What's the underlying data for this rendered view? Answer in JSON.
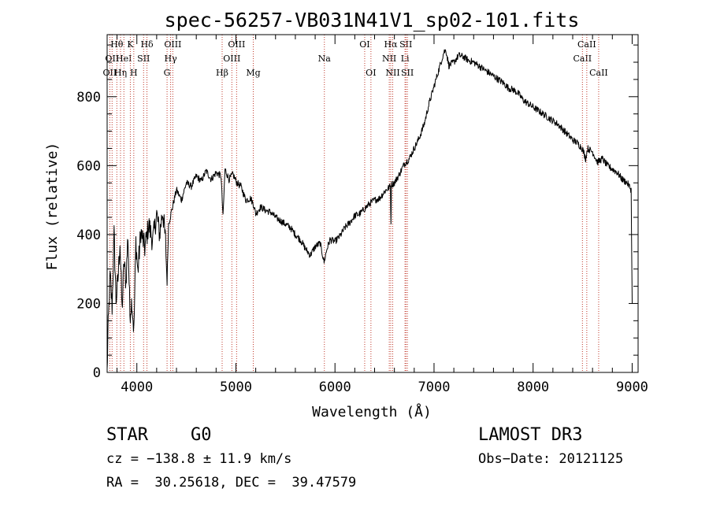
{
  "chart_data": {
    "type": "line",
    "title": "spec-56257-VB031N41V1_sp02-101.fits",
    "xlabel": "Wavelength (Å)",
    "ylabel": "Flux (relative)",
    "xlim": [
      3700,
      9060
    ],
    "ylim": [
      0,
      980
    ],
    "xticks_major": [
      4000,
      5000,
      6000,
      7000,
      8000,
      9000
    ],
    "yticks_major": [
      0,
      200,
      400,
      600,
      800
    ],
    "xtick_minor_step": 200,
    "ytick_minor_step": 50,
    "series": [
      {
        "name": "flux",
        "points": [
          [
            3700,
            0
          ],
          [
            3710,
            130
          ],
          [
            3730,
            280
          ],
          [
            3750,
            190
          ],
          [
            3770,
            400
          ],
          [
            3790,
            210
          ],
          [
            3810,
            270
          ],
          [
            3830,
            380
          ],
          [
            3850,
            180
          ],
          [
            3870,
            320
          ],
          [
            3890,
            260
          ],
          [
            3910,
            400
          ],
          [
            3930,
            170
          ],
          [
            3950,
            210
          ],
          [
            3970,
            120
          ],
          [
            3990,
            380
          ],
          [
            4010,
            290
          ],
          [
            4040,
            410
          ],
          [
            4080,
            360
          ],
          [
            4120,
            430
          ],
          [
            4160,
            380
          ],
          [
            4200,
            460
          ],
          [
            4230,
            400
          ],
          [
            4260,
            470
          ],
          [
            4290,
            380
          ],
          [
            4305,
            260
          ],
          [
            4320,
            430
          ],
          [
            4360,
            480
          ],
          [
            4400,
            530
          ],
          [
            4450,
            500
          ],
          [
            4500,
            550
          ],
          [
            4550,
            540
          ],
          [
            4600,
            570
          ],
          [
            4650,
            555
          ],
          [
            4700,
            585
          ],
          [
            4750,
            560
          ],
          [
            4800,
            580
          ],
          [
            4850,
            570
          ],
          [
            4870,
            450
          ],
          [
            4890,
            590
          ],
          [
            4930,
            560
          ],
          [
            4970,
            575
          ],
          [
            5010,
            550
          ],
          [
            5050,
            540
          ],
          [
            5100,
            500
          ],
          [
            5150,
            505
          ],
          [
            5180,
            485
          ],
          [
            5200,
            460
          ],
          [
            5250,
            480
          ],
          [
            5300,
            470
          ],
          [
            5350,
            465
          ],
          [
            5400,
            450
          ],
          [
            5450,
            440
          ],
          [
            5500,
            430
          ],
          [
            5550,
            420
          ],
          [
            5600,
            400
          ],
          [
            5650,
            385
          ],
          [
            5700,
            360
          ],
          [
            5750,
            340
          ],
          [
            5800,
            365
          ],
          [
            5850,
            375
          ],
          [
            5890,
            320
          ],
          [
            5920,
            360
          ],
          [
            5950,
            385
          ],
          [
            6000,
            380
          ],
          [
            6050,
            395
          ],
          [
            6100,
            420
          ],
          [
            6150,
            435
          ],
          [
            6200,
            455
          ],
          [
            6250,
            460
          ],
          [
            6300,
            475
          ],
          [
            6350,
            490
          ],
          [
            6400,
            500
          ],
          [
            6450,
            505
          ],
          [
            6500,
            525
          ],
          [
            6560,
            540
          ],
          [
            6565,
            430
          ],
          [
            6570,
            545
          ],
          [
            6600,
            550
          ],
          [
            6650,
            575
          ],
          [
            6700,
            605
          ],
          [
            6750,
            620
          ],
          [
            6800,
            650
          ],
          [
            6850,
            680
          ],
          [
            6900,
            720
          ],
          [
            6950,
            780
          ],
          [
            7000,
            830
          ],
          [
            7050,
            880
          ],
          [
            7100,
            930
          ],
          [
            7120,
            935
          ],
          [
            7150,
            890
          ],
          [
            7200,
            900
          ],
          [
            7250,
            920
          ],
          [
            7300,
            915
          ],
          [
            7350,
            905
          ],
          [
            7400,
            900
          ],
          [
            7450,
            890
          ],
          [
            7500,
            880
          ],
          [
            7550,
            870
          ],
          [
            7600,
            860
          ],
          [
            7650,
            850
          ],
          [
            7700,
            840
          ],
          [
            7750,
            825
          ],
          [
            7800,
            820
          ],
          [
            7850,
            810
          ],
          [
            7900,
            790
          ],
          [
            7950,
            780
          ],
          [
            8000,
            770
          ],
          [
            8050,
            760
          ],
          [
            8100,
            750
          ],
          [
            8150,
            740
          ],
          [
            8200,
            730
          ],
          [
            8250,
            720
          ],
          [
            8300,
            705
          ],
          [
            8350,
            690
          ],
          [
            8400,
            675
          ],
          [
            8450,
            665
          ],
          [
            8500,
            648
          ],
          [
            8530,
            620
          ],
          [
            8550,
            650
          ],
          [
            8600,
            640
          ],
          [
            8650,
            610
          ],
          [
            8700,
            620
          ],
          [
            8750,
            600
          ],
          [
            8800,
            590
          ],
          [
            8850,
            580
          ],
          [
            8900,
            560
          ],
          [
            8950,
            550
          ],
          [
            8990,
            530
          ],
          [
            9000,
            200
          ]
        ]
      }
    ],
    "lines": [
      {
        "wl": 3727,
        "label": "OII",
        "tier": 3
      },
      {
        "wl": 3750,
        "label": "OII",
        "tier": 2
      },
      {
        "wl": 3798,
        "label": "Hθ",
        "tier": 1
      },
      {
        "wl": 3835,
        "label": "Hη",
        "tier": 3
      },
      {
        "wl": 3869,
        "label": "HeI",
        "tier": 2
      },
      {
        "wl": 3934,
        "label": "K",
        "tier": 1
      },
      {
        "wl": 3969,
        "label": "H",
        "tier": 3
      },
      {
        "wl": 4068,
        "label": "SII",
        "tier": 2
      },
      {
        "wl": 4102,
        "label": "Hδ",
        "tier": 1
      },
      {
        "wl": 4305,
        "label": "G",
        "tier": 3
      },
      {
        "wl": 4341,
        "label": "Hγ",
        "tier": 2
      },
      {
        "wl": 4363,
        "label": "OIII",
        "tier": 1
      },
      {
        "wl": 4861,
        "label": "Hβ",
        "tier": 3
      },
      {
        "wl": 4959,
        "label": "OIII",
        "tier": 2
      },
      {
        "wl": 5007,
        "label": "OIII",
        "tier": 1
      },
      {
        "wl": 5175,
        "label": "Mg",
        "tier": 3
      },
      {
        "wl": 5893,
        "label": "Na",
        "tier": 2
      },
      {
        "wl": 6300,
        "label": "OI",
        "tier": 1
      },
      {
        "wl": 6363,
        "label": "OI",
        "tier": 3
      },
      {
        "wl": 6548,
        "label": "NII",
        "tier": 2
      },
      {
        "wl": 6563,
        "label": "Hα",
        "tier": 1
      },
      {
        "wl": 6583,
        "label": "NII",
        "tier": 3
      },
      {
        "wl": 6707,
        "label": "Li",
        "tier": 2
      },
      {
        "wl": 6716,
        "label": "SII",
        "tier": 1
      },
      {
        "wl": 6731,
        "label": "SII",
        "tier": 3
      },
      {
        "wl": 8498,
        "label": "CaII",
        "tier": 2
      },
      {
        "wl": 8542,
        "label": "CaII",
        "tier": 1
      },
      {
        "wl": 8662,
        "label": "CaII",
        "tier": 3
      }
    ]
  },
  "info": {
    "class": "STAR",
    "subclass": "G0",
    "survey": "LAMOST DR3",
    "cz": "cz = −138.8 ± 11.9 km/s",
    "obs_date": "Obs−Date: 20121125",
    "coords": "RA =  30.25618, DEC =  39.47579"
  }
}
